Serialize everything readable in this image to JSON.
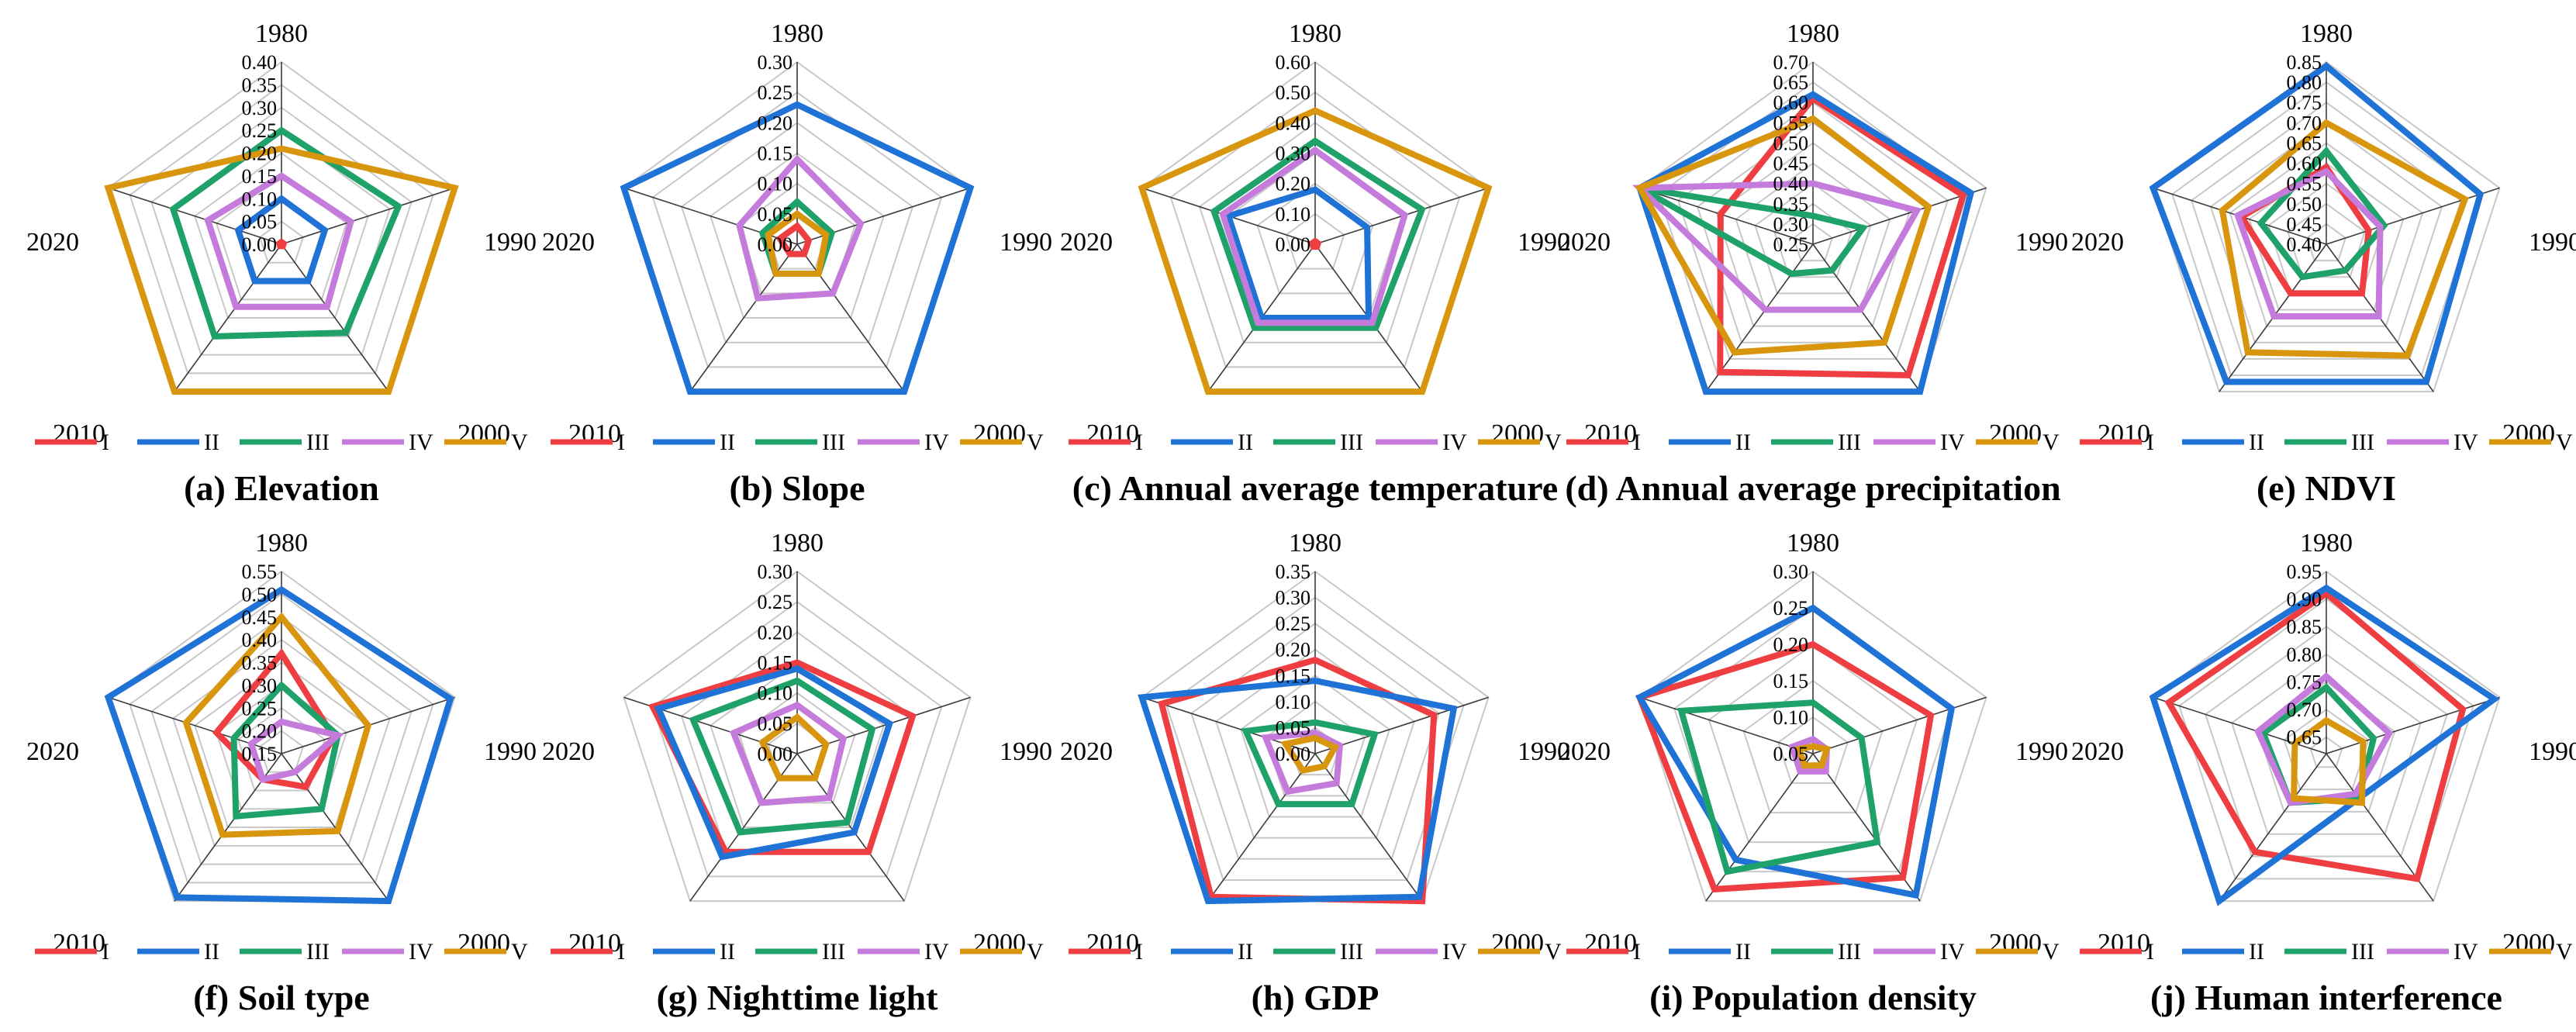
{
  "colors": {
    "I": "#ee3e42",
    "II": "#1f72d6",
    "III": "#1fa26a",
    "IV": "#c57bdc",
    "V": "#d8960f",
    "grid": "#c8c8c8",
    "spoke": "#3a3a3a"
  },
  "chart_data": [
    {
      "type": "radar",
      "title": "(a) Elevation",
      "axes": [
        "1980",
        "1990",
        "2000",
        "2010",
        "2020"
      ],
      "ticks": [
        "0.00",
        "0.05",
        "0.10",
        "0.15",
        "0.20",
        "0.25",
        "0.30",
        "0.35",
        "0.40"
      ],
      "ylim": [
        0,
        0.4
      ],
      "series": [
        {
          "name": "I",
          "values": [
            0.005,
            0.005,
            0.005,
            0.005,
            0.005
          ]
        },
        {
          "name": "II",
          "values": [
            0.1,
            0.1,
            0.1,
            0.1,
            0.1
          ]
        },
        {
          "name": "III",
          "values": [
            0.25,
            0.27,
            0.24,
            0.25,
            0.25
          ]
        },
        {
          "name": "IV",
          "values": [
            0.15,
            0.16,
            0.17,
            0.17,
            0.17
          ]
        },
        {
          "name": "V",
          "values": [
            0.21,
            0.4,
            0.4,
            0.4,
            0.4
          ]
        }
      ]
    },
    {
      "type": "radar",
      "title": "(b) Slope",
      "axes": [
        "1980",
        "1990",
        "2000",
        "2010",
        "2020"
      ],
      "ticks": [
        "0.00",
        "0.05",
        "0.10",
        "0.15",
        "0.20",
        "0.25",
        "0.30"
      ],
      "ylim": [
        0,
        0.3
      ],
      "series": [
        {
          "name": "I",
          "values": [
            0.03,
            0.02,
            0.02,
            0.02,
            0.03
          ]
        },
        {
          "name": "II",
          "values": [
            0.23,
            0.3,
            0.3,
            0.3,
            0.3
          ]
        },
        {
          "name": "III",
          "values": [
            0.07,
            0.06,
            0.06,
            0.06,
            0.06
          ]
        },
        {
          "name": "IV",
          "values": [
            0.14,
            0.11,
            0.1,
            0.11,
            0.1
          ]
        },
        {
          "name": "V",
          "values": [
            0.05,
            0.05,
            0.06,
            0.06,
            0.05
          ]
        }
      ]
    },
    {
      "type": "radar",
      "title": "(c) Annual average temperature",
      "axes": [
        "1980",
        "1990",
        "2000",
        "2010",
        "2020"
      ],
      "ticks": [
        "0.00",
        "0.10",
        "0.20",
        "0.30",
        "0.40",
        "0.50",
        "0.60"
      ],
      "ylim": [
        0,
        0.6
      ],
      "series": [
        {
          "name": "I",
          "values": [
            0.01,
            0.01,
            0.01,
            0.01,
            0.01
          ]
        },
        {
          "name": "II",
          "values": [
            0.18,
            0.18,
            0.3,
            0.3,
            0.3
          ]
        },
        {
          "name": "III",
          "values": [
            0.34,
            0.37,
            0.34,
            0.34,
            0.35
          ]
        },
        {
          "name": "IV",
          "values": [
            0.31,
            0.31,
            0.32,
            0.32,
            0.32
          ]
        },
        {
          "name": "V",
          "values": [
            0.44,
            0.6,
            0.6,
            0.6,
            0.6
          ]
        }
      ]
    },
    {
      "type": "radar",
      "title": "(d) Annual average precipitation",
      "axes": [
        "1980",
        "1990",
        "2000",
        "2010",
        "2020"
      ],
      "ticks": [
        "0.25",
        "0.30",
        "0.35",
        "0.40",
        "0.45",
        "0.50",
        "0.55",
        "0.60",
        "0.65",
        "0.70"
      ],
      "ylim": [
        0.25,
        0.7
      ],
      "series": [
        {
          "name": "I",
          "values": [
            0.61,
            0.64,
            0.65,
            0.64,
            0.49
          ]
        },
        {
          "name": "II",
          "values": [
            0.62,
            0.66,
            0.7,
            0.7,
            0.7
          ]
        },
        {
          "name": "III",
          "values": [
            0.32,
            0.38,
            0.33,
            0.34,
            0.7
          ]
        },
        {
          "name": "IV",
          "values": [
            0.4,
            0.52,
            0.45,
            0.45,
            0.7
          ]
        },
        {
          "name": "V",
          "values": [
            0.56,
            0.55,
            0.55,
            0.58,
            0.7
          ]
        }
      ]
    },
    {
      "type": "radar",
      "title": "(e) NDVI",
      "axes": [
        "1980",
        "1990",
        "2000",
        "2010",
        "2020"
      ],
      "ticks": [
        "0.40",
        "0.45",
        "0.50",
        "0.55",
        "0.60",
        "0.65",
        "0.70",
        "0.75",
        "0.80",
        "0.85"
      ],
      "ylim": [
        0.4,
        0.85
      ],
      "series": [
        {
          "name": "I",
          "values": [
            0.59,
            0.51,
            0.55,
            0.55,
            0.62
          ]
        },
        {
          "name": "II",
          "values": [
            0.84,
            0.8,
            0.82,
            0.82,
            0.85
          ]
        },
        {
          "name": "III",
          "values": [
            0.63,
            0.55,
            0.48,
            0.5,
            0.57
          ]
        },
        {
          "name": "IV",
          "values": [
            0.58,
            0.54,
            0.62,
            0.62,
            0.63
          ]
        },
        {
          "name": "V",
          "values": [
            0.7,
            0.76,
            0.74,
            0.73,
            0.67
          ]
        }
      ]
    },
    {
      "type": "radar",
      "title": "(f) Soil type",
      "axes": [
        "1980",
        "1990",
        "2000",
        "2010",
        "2020"
      ],
      "ticks": [
        "0.15",
        "0.20",
        "0.25",
        "0.30",
        "0.35",
        "0.40",
        "0.45",
        "0.50",
        "0.55"
      ],
      "ylim": [
        0.15,
        0.55
      ],
      "series": [
        {
          "name": "I",
          "values": [
            0.37,
            0.27,
            0.24,
            0.22,
            0.3
          ]
        },
        {
          "name": "II",
          "values": [
            0.51,
            0.54,
            0.55,
            0.54,
            0.55
          ]
        },
        {
          "name": "III",
          "values": [
            0.3,
            0.28,
            0.3,
            0.32,
            0.26
          ]
        },
        {
          "name": "IV",
          "values": [
            0.22,
            0.28,
            0.2,
            0.22,
            0.22
          ]
        },
        {
          "name": "V",
          "values": [
            0.45,
            0.35,
            0.36,
            0.37,
            0.37
          ]
        }
      ]
    },
    {
      "type": "radar",
      "title": "(g) Nighttime light",
      "axes": [
        "1980",
        "1990",
        "2000",
        "2010",
        "2020"
      ],
      "ticks": [
        "0.00",
        "0.05",
        "0.10",
        "0.15",
        "0.20",
        "0.25",
        "0.30"
      ],
      "ylim": [
        0,
        0.3
      ],
      "series": [
        {
          "name": "I",
          "values": [
            0.15,
            0.2,
            0.2,
            0.2,
            0.25
          ]
        },
        {
          "name": "II",
          "values": [
            0.14,
            0.16,
            0.16,
            0.21,
            0.24
          ]
        },
        {
          "name": "III",
          "values": [
            0.12,
            0.13,
            0.14,
            0.16,
            0.18
          ]
        },
        {
          "name": "IV",
          "values": [
            0.08,
            0.08,
            0.09,
            0.1,
            0.11
          ]
        },
        {
          "name": "V",
          "values": [
            0.06,
            0.05,
            0.05,
            0.05,
            0.06
          ]
        }
      ]
    },
    {
      "type": "radar",
      "title": "(h) GDP",
      "axes": [
        "1980",
        "1990",
        "2000",
        "2010",
        "2020"
      ],
      "ticks": [
        "0.00",
        "0.05",
        "0.10",
        "0.15",
        "0.20",
        "0.25",
        "0.30",
        "0.35"
      ],
      "ylim": [
        0,
        0.35
      ],
      "series": [
        {
          "name": "I",
          "values": [
            0.18,
            0.24,
            0.35,
            0.34,
            0.31
          ]
        },
        {
          "name": "II",
          "values": [
            0.14,
            0.28,
            0.34,
            0.35,
            0.35
          ]
        },
        {
          "name": "III",
          "values": [
            0.06,
            0.12,
            0.12,
            0.12,
            0.14
          ]
        },
        {
          "name": "IV",
          "values": [
            0.04,
            0.05,
            0.07,
            0.09,
            0.1
          ]
        },
        {
          "name": "V",
          "values": [
            0.03,
            0.04,
            0.03,
            0.04,
            0.06
          ]
        }
      ]
    },
    {
      "type": "radar",
      "title": "(i) Population density",
      "axes": [
        "1980",
        "1990",
        "2000",
        "2010",
        "2020"
      ],
      "ticks": [
        "0.05",
        "0.10",
        "0.15",
        "0.20",
        "0.25",
        "0.30"
      ],
      "ylim": [
        0.05,
        0.3
      ],
      "series": [
        {
          "name": "I",
          "values": [
            0.2,
            0.22,
            0.26,
            0.28,
            0.3
          ]
        },
        {
          "name": "II",
          "values": [
            0.25,
            0.25,
            0.29,
            0.23,
            0.3
          ]
        },
        {
          "name": "III",
          "values": [
            0.12,
            0.12,
            0.2,
            0.25,
            0.24
          ]
        },
        {
          "name": "IV",
          "values": [
            0.07,
            0.07,
            0.08,
            0.08,
            0.08
          ]
        },
        {
          "name": "V",
          "values": [
            0.06,
            0.07,
            0.07,
            0.07,
            0.07
          ]
        }
      ]
    },
    {
      "type": "radar",
      "title": "(j) Human interference",
      "axes": [
        "1980",
        "1990",
        "2000",
        "2010",
        "2020"
      ],
      "ticks": [
        "0.65",
        "0.70",
        "0.75",
        "0.80",
        "0.85",
        "0.90",
        "0.95"
      ],
      "ylim": [
        0.62,
        0.95
      ],
      "series": [
        {
          "name": "I",
          "values": [
            0.91,
            0.88,
            0.9,
            0.84,
            0.92
          ]
        },
        {
          "name": "II",
          "values": [
            0.92,
            0.94,
            0.72,
            0.95,
            0.95
          ]
        },
        {
          "name": "III",
          "values": [
            0.74,
            0.71,
            0.72,
            0.73,
            0.74
          ]
        },
        {
          "name": "IV",
          "values": [
            0.76,
            0.74,
            0.71,
            0.73,
            0.75
          ]
        },
        {
          "name": "V",
          "values": [
            0.68,
            0.69,
            0.73,
            0.72,
            0.68
          ]
        }
      ]
    }
  ]
}
